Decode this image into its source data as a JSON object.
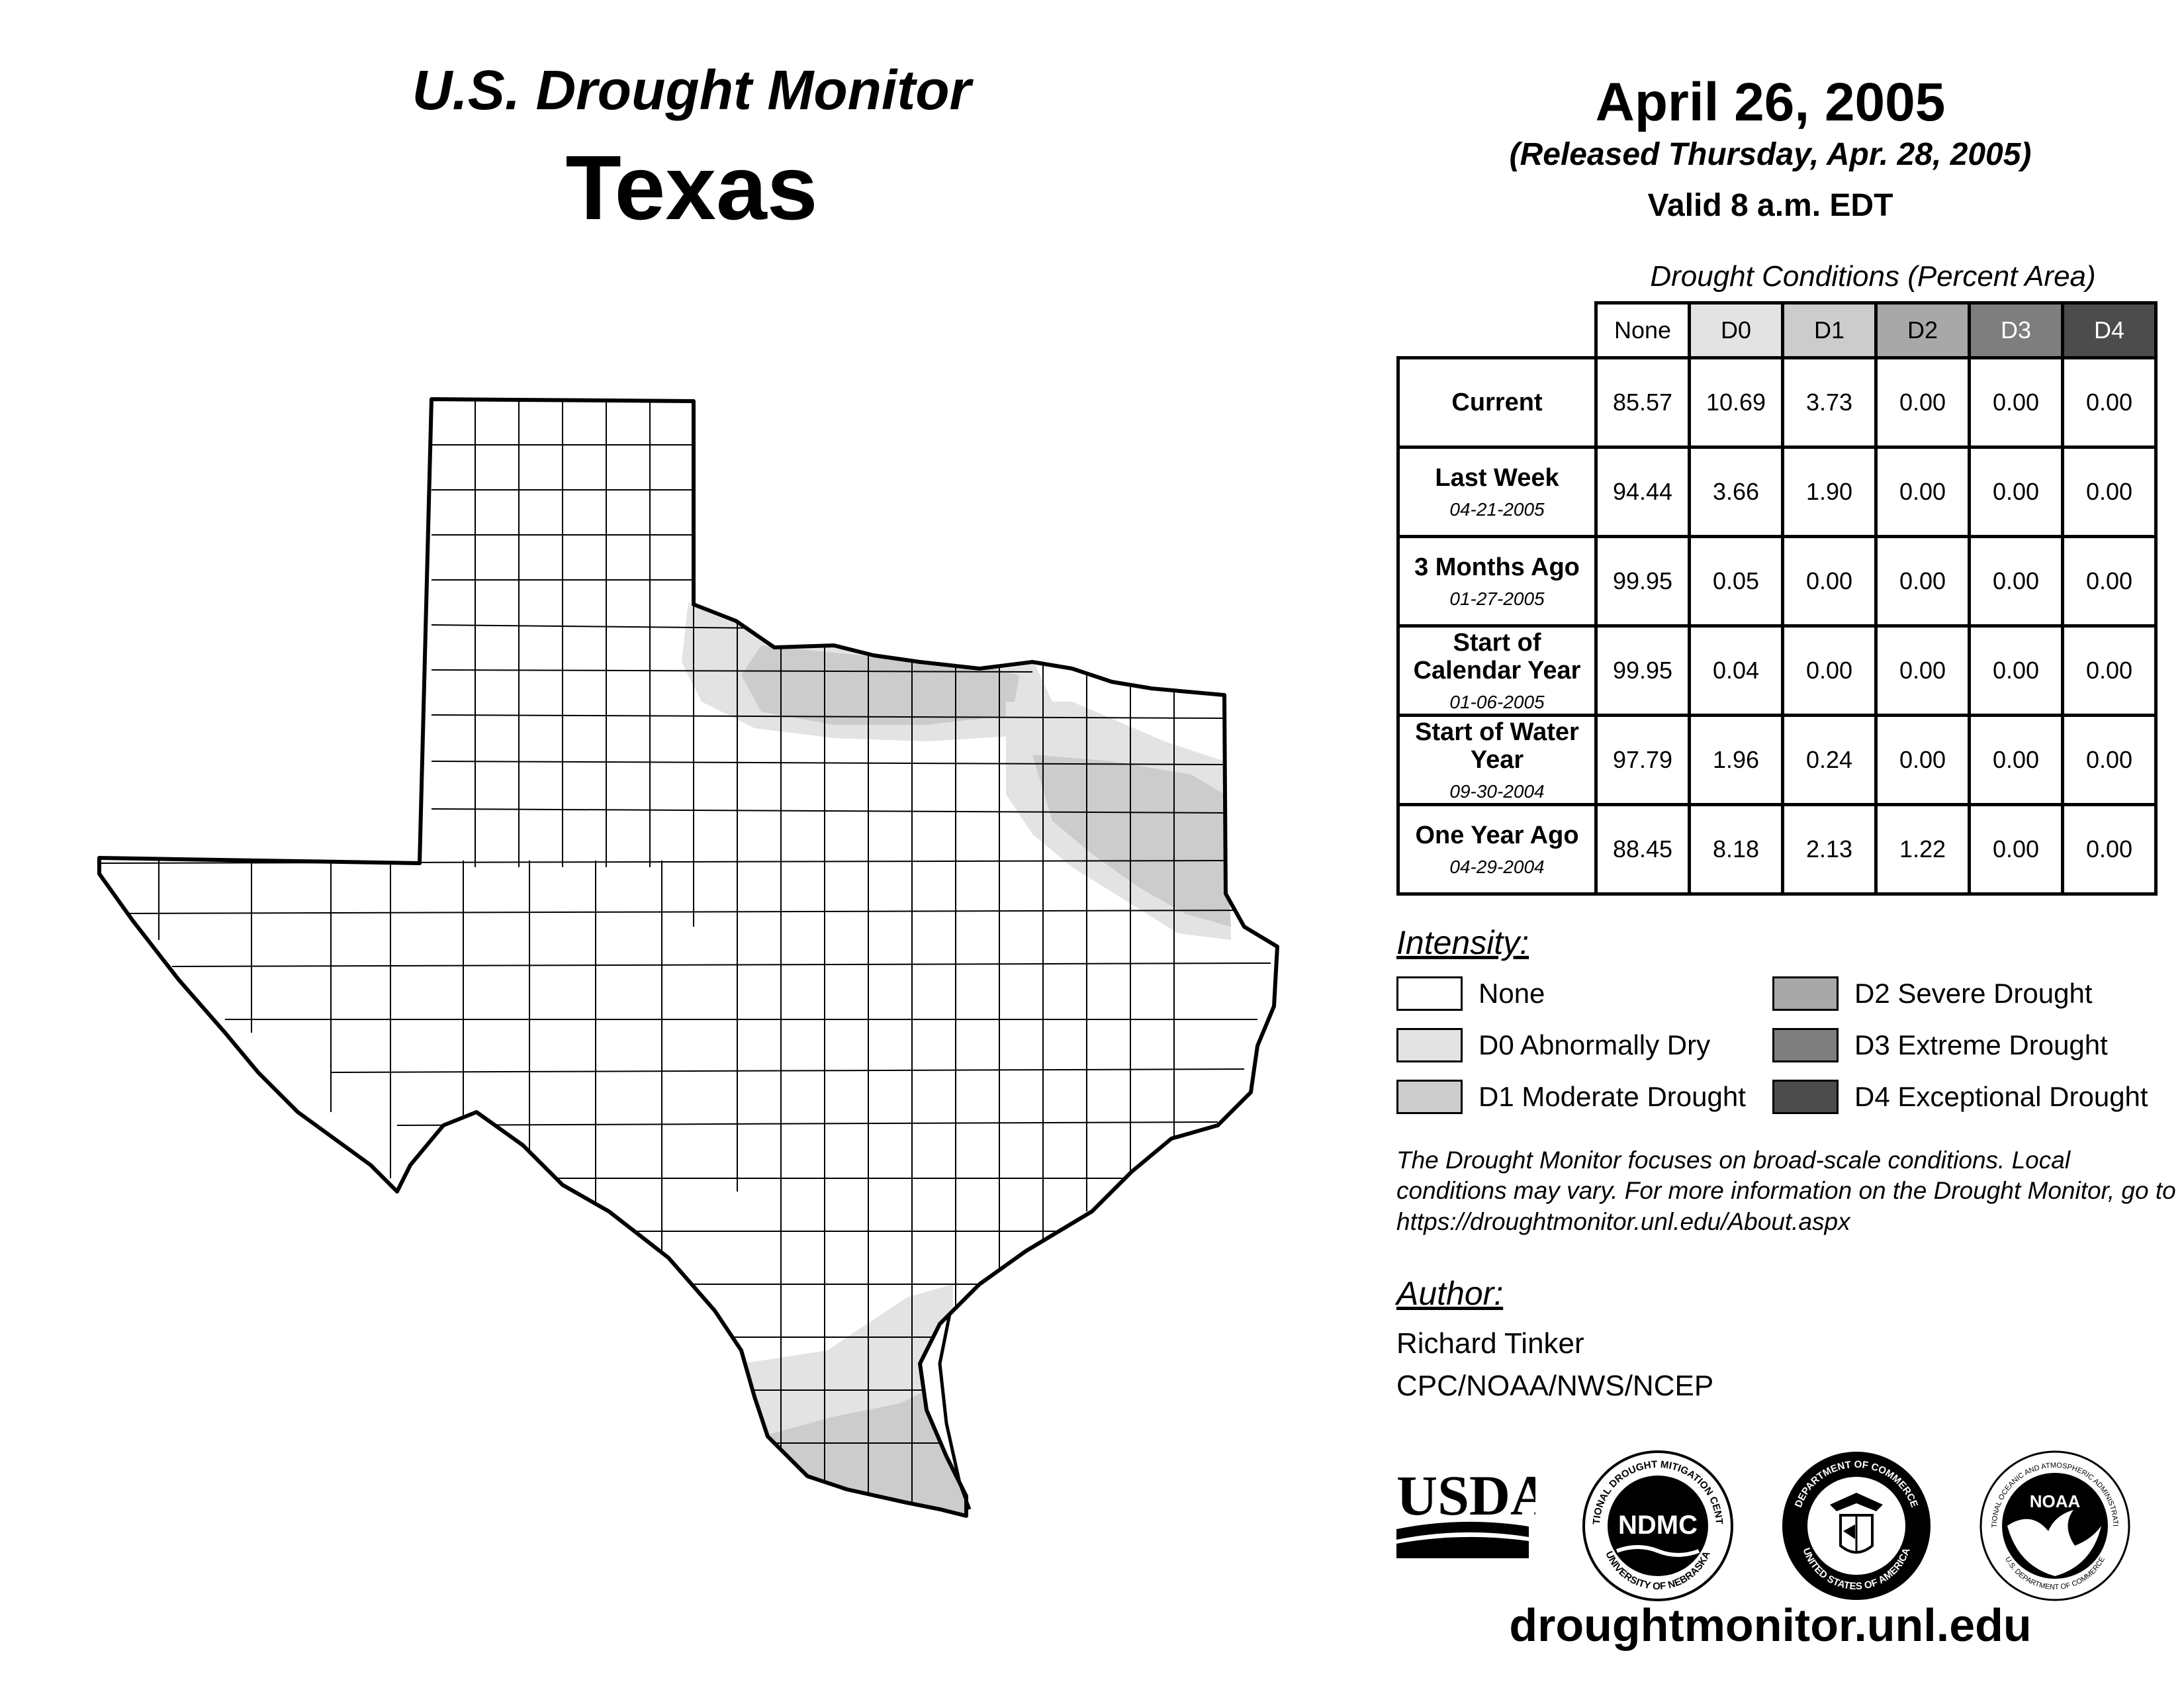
{
  "header": {
    "monitor_title": "U.S. Drought Monitor",
    "state": "Texas",
    "map_date": "April 26, 2005",
    "released": "(Released Thursday, Apr. 28, 2005)",
    "valid": "Valid 8 a.m. EDT"
  },
  "table": {
    "caption": "Drought Conditions (Percent Area)",
    "columns": [
      "None",
      "D0",
      "D1",
      "D2",
      "D3",
      "D4"
    ],
    "rows": [
      {
        "label": "Current",
        "date": "",
        "values": [
          "85.57",
          "10.69",
          "3.73",
          "0.00",
          "0.00",
          "0.00"
        ]
      },
      {
        "label": "Last Week",
        "date": "04-21-2005",
        "values": [
          "94.44",
          "3.66",
          "1.90",
          "0.00",
          "0.00",
          "0.00"
        ]
      },
      {
        "label": "3 Months Ago",
        "date": "01-27-2005",
        "values": [
          "99.95",
          "0.05",
          "0.00",
          "0.00",
          "0.00",
          "0.00"
        ]
      },
      {
        "label": "Start of Calendar Year",
        "date": "01-06-2005",
        "values": [
          "99.95",
          "0.04",
          "0.00",
          "0.00",
          "0.00",
          "0.00"
        ]
      },
      {
        "label": "Start of Water Year",
        "date": "09-30-2004",
        "values": [
          "97.79",
          "1.96",
          "0.24",
          "0.00",
          "0.00",
          "0.00"
        ]
      },
      {
        "label": "One Year Ago",
        "date": "04-29-2004",
        "values": [
          "88.45",
          "8.18",
          "2.13",
          "1.22",
          "0.00",
          "0.00"
        ]
      }
    ]
  },
  "legend": {
    "title": "Intensity:",
    "items": [
      {
        "label": "None",
        "color": "#ffffff"
      },
      {
        "label": "D0 Abnormally Dry",
        "color": "#e3e3e3"
      },
      {
        "label": "D1 Moderate Drought",
        "color": "#cccccc"
      },
      {
        "label": "D2 Severe Drought",
        "color": "#a8a8a8"
      },
      {
        "label": "D3 Extreme Drought",
        "color": "#7e7e7e"
      },
      {
        "label": "D4 Exceptional Drought",
        "color": "#4c4c4c"
      }
    ]
  },
  "note": "The Drought Monitor focuses on broad-scale conditions. Local conditions may vary. For more information on the Drought Monitor, go to https://droughtmonitor.unl.edu/About.aspx",
  "author": {
    "heading": "Author:",
    "name": "Richard Tinker",
    "org": "CPC/NOAA/NWS/NCEP"
  },
  "logos": {
    "usda": "USDA",
    "ndmc": "NDMC",
    "ndmc_ring_top": "NATIONAL DROUGHT MITIGATION CENTER",
    "ndmc_ring_bottom": "UNIVERSITY OF NEBRASKA",
    "doc_ring_top": "DEPARTMENT OF COMMERCE",
    "doc_ring_bottom": "UNITED STATES OF AMERICA",
    "noaa": "NOAA",
    "noaa_ring_top": "NATIONAL OCEANIC AND ATMOSPHERIC ADMINISTRATION",
    "noaa_ring_bottom": "U.S. DEPARTMENT OF COMMERCE"
  },
  "footer_url": "droughtmonitor.unl.edu",
  "map": {
    "drought_areas": [
      {
        "region": "North Texas / Red River",
        "category": "D0",
        "color": "#e3e3e3"
      },
      {
        "region": "Red River counties",
        "category": "D1",
        "color": "#cccccc"
      },
      {
        "region": "Northeast Texas",
        "category": "D0",
        "color": "#e3e3e3"
      },
      {
        "region": "East Texas",
        "category": "D1",
        "color": "#cccccc"
      },
      {
        "region": "South Texas / Lower Rio Grande Valley",
        "category": "D0",
        "color": "#e3e3e3"
      },
      {
        "region": "Lower Rio Grande Valley",
        "category": "D1",
        "color": "#cccccc"
      }
    ]
  }
}
